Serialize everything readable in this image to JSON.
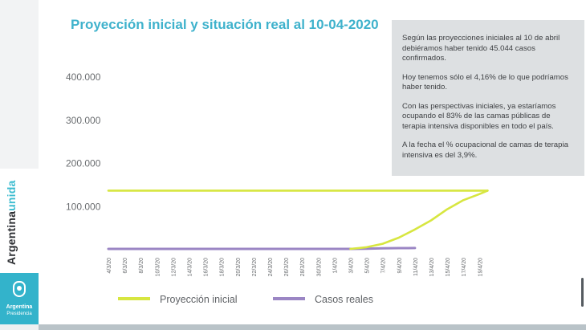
{
  "title": "Proyección inicial y situación real al 10-04-2020",
  "info": {
    "paragraphs": [
      "Según las proyecciones iniciales al 10 de abril debiéramos haber tenido 45.044 casos confirmados.",
      "Hoy tenemos sólo el 4,16% de lo que podríamos haber tenido.",
      "Con las perspectivas iniciales, ya estaríamos ocupando el 83% de las camas públicas de terapia intensiva disponibles en todo el país.",
      "A la fecha el % ocupacional de camas de terapia intensiva es del 3,9%."
    ]
  },
  "brand": {
    "word1": "Argentina",
    "word2": "unida",
    "logo_line1": "Argentina",
    "logo_line2": "Presidencia"
  },
  "colors": {
    "title": "#3fb2cc",
    "projection": "#d7e640",
    "real": "#9b86c4",
    "panel": "#dde0e2",
    "accent": "#33b3cb"
  },
  "icons": [
    "argentina-shield-icon"
  ],
  "chart_data": {
    "type": "line",
    "title": "Proyección inicial y situación real al 10-04-2020",
    "x_tick_labels": [
      "4/3/20",
      "6/3/20",
      "8/3/20",
      "10/3/20",
      "12/3/20",
      "14/3/20",
      "16/3/20",
      "18/3/20",
      "20/3/20",
      "22/3/20",
      "24/3/20",
      "26/3/20",
      "28/3/20",
      "30/3/20",
      "1/4/20",
      "3/4/20",
      "5/4/20",
      "7/4/20",
      "9/4/20",
      "11/4/20",
      "13/4/20",
      "15/4/20",
      "17/4/20",
      "19/4/20"
    ],
    "y_tick_labels": [
      "100.000",
      "200.000",
      "300.000",
      "400.000"
    ],
    "y_ticks": [
      100000,
      200000,
      300000,
      400000
    ],
    "ylim": [
      0,
      430000
    ],
    "grid": false,
    "legend_position": "bottom",
    "series": [
      {
        "name": "Proyección inicial",
        "color": "#d7e640",
        "points": [
          {
            "x": "4/3/20",
            "y": 135000
          },
          {
            "x": "6/3/20",
            "y": 135000
          },
          {
            "x": "8/3/20",
            "y": 135000
          },
          {
            "x": "10/3/20",
            "y": 135000
          },
          {
            "x": "12/3/20",
            "y": 135000
          },
          {
            "x": "14/3/20",
            "y": 135000
          },
          {
            "x": "16/3/20",
            "y": 135000
          },
          {
            "x": "18/3/20",
            "y": 135000
          },
          {
            "x": "20/3/20",
            "y": 135000
          },
          {
            "x": "22/3/20",
            "y": 135000
          },
          {
            "x": "24/3/20",
            "y": 135000
          },
          {
            "x": "26/3/20",
            "y": 135000
          },
          {
            "x": "28/3/20",
            "y": 135000
          },
          {
            "x": "30/3/20",
            "y": 135000
          },
          {
            "x": "1/4/20",
            "y": 135000
          },
          {
            "x": "3/4/20",
            "y": 135000
          },
          {
            "x": "5/4/20",
            "y": 135000
          },
          {
            "x": "7/4/20",
            "y": 135000
          },
          {
            "x": "9/4/20",
            "y": 135000
          },
          {
            "x": "11/4/20",
            "y": 135000
          },
          {
            "x": "13/4/20",
            "y": 135000
          },
          {
            "x": "15/4/20",
            "y": 135000
          },
          {
            "x": "17/4/20",
            "y": 135000
          },
          {
            "x": "19/4/20",
            "y": 135000
          },
          {
            "x": "20/4/20",
            "y": 135000
          }
        ]
      },
      {
        "name": "Casos reales",
        "color": "#9b86c4",
        "points": [
          {
            "x": "4/3/20",
            "y": 0
          },
          {
            "x": "6/3/20",
            "y": 0
          },
          {
            "x": "8/3/20",
            "y": 0
          },
          {
            "x": "10/3/20",
            "y": 0
          },
          {
            "x": "12/3/20",
            "y": 0
          },
          {
            "x": "14/3/20",
            "y": 0
          },
          {
            "x": "16/3/20",
            "y": 0
          },
          {
            "x": "18/3/20",
            "y": 0
          },
          {
            "x": "20/3/20",
            "y": 0
          },
          {
            "x": "22/3/20",
            "y": 0
          },
          {
            "x": "24/3/20",
            "y": 0
          },
          {
            "x": "26/3/20",
            "y": 0
          },
          {
            "x": "28/3/20",
            "y": 0
          },
          {
            "x": "30/3/20",
            "y": 0
          },
          {
            "x": "1/4/20",
            "y": 0
          },
          {
            "x": "3/4/20",
            "y": 0
          },
          {
            "x": "5/4/20",
            "y": 500
          },
          {
            "x": "7/4/20",
            "y": 1500
          },
          {
            "x": "9/4/20",
            "y": 1900
          },
          {
            "x": "11/4/20",
            "y": 2100
          }
        ]
      },
      {
        "name": "",
        "color": "#d7e640",
        "points": [
          {
            "x": "3/4/20",
            "y": 0
          },
          {
            "x": "5/4/20",
            "y": 4000
          },
          {
            "x": "7/4/20",
            "y": 12000
          },
          {
            "x": "9/4/20",
            "y": 26000
          },
          {
            "x": "11/4/20",
            "y": 45000
          },
          {
            "x": "13/4/20",
            "y": 66000
          },
          {
            "x": "15/4/20",
            "y": 92000
          },
          {
            "x": "17/4/20",
            "y": 113000
          },
          {
            "x": "19/4/20",
            "y": 127000
          },
          {
            "x": "20/4/20",
            "y": 135000
          }
        ]
      }
    ]
  }
}
